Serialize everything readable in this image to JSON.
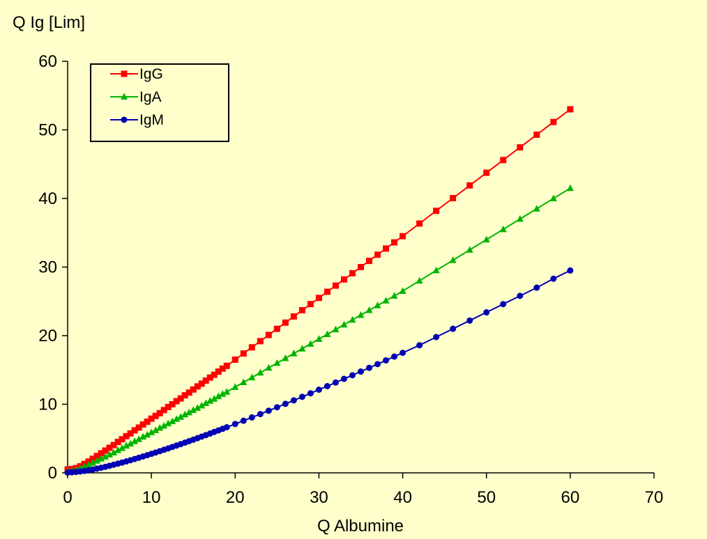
{
  "chart_data": {
    "type": "line",
    "title": "",
    "xlabel": "Q Albumine",
    "ylabel": "Q Ig [Lim]",
    "xlim": [
      0,
      70
    ],
    "ylim": [
      0,
      60
    ],
    "x_ticks": [
      0,
      10,
      20,
      30,
      40,
      50,
      60,
      70
    ],
    "y_ticks": [
      0,
      10,
      20,
      30,
      40,
      50,
      60
    ],
    "grid": false,
    "legend_position": "top-left",
    "background": "#ffffcc",
    "series": [
      {
        "name": "IgG",
        "color": "#ff0000",
        "marker": "square",
        "x": [
          0,
          0.5,
          1,
          1.5,
          2,
          2.5,
          3,
          3.5,
          4,
          4.5,
          5,
          5.5,
          6,
          6.5,
          7,
          7.5,
          8,
          8.5,
          9,
          9.5,
          10,
          10.5,
          11,
          11.5,
          12,
          12.5,
          13,
          13.5,
          14,
          14.5,
          15,
          15.5,
          16,
          16.5,
          17,
          17.5,
          18,
          18.5,
          19,
          20,
          21,
          22,
          23,
          24,
          25,
          26,
          27,
          28,
          29,
          30,
          31,
          32,
          33,
          34,
          35,
          36,
          37,
          38,
          39,
          40,
          42,
          44,
          46,
          48,
          50,
          52,
          54,
          56,
          58,
          60
        ],
        "values": [
          0.5,
          0.55,
          0.7,
          0.95,
          1.3,
          1.65,
          2.05,
          2.45,
          2.85,
          3.25,
          3.65,
          4.05,
          4.5,
          4.9,
          5.35,
          5.75,
          6.2,
          6.6,
          7.05,
          7.45,
          7.9,
          8.3,
          8.7,
          9.15,
          9.6,
          10.0,
          10.45,
          10.85,
          11.3,
          11.7,
          12.15,
          12.6,
          13.0,
          13.45,
          13.9,
          14.3,
          14.75,
          15.2,
          15.6,
          16.5,
          17.4,
          18.3,
          19.2,
          20.1,
          21.0,
          21.9,
          22.8,
          23.7,
          24.6,
          25.5,
          26.4,
          27.3,
          28.2,
          29.1,
          30.0,
          30.9,
          31.8,
          32.7,
          33.6,
          34.5,
          36.35,
          38.2,
          40.05,
          41.9,
          43.75,
          45.6,
          47.45,
          49.3,
          51.15,
          53.0
        ]
      },
      {
        "name": "IgA",
        "color": "#00b400",
        "marker": "triangle",
        "x": [
          0,
          0.5,
          1,
          1.5,
          2,
          2.5,
          3,
          3.5,
          4,
          4.5,
          5,
          5.5,
          6,
          6.5,
          7,
          7.5,
          8,
          8.5,
          9,
          9.5,
          10,
          10.5,
          11,
          11.5,
          12,
          12.5,
          13,
          13.5,
          14,
          14.5,
          15,
          15.5,
          16,
          16.5,
          17,
          17.5,
          18,
          18.5,
          19,
          20,
          21,
          22,
          23,
          24,
          25,
          26,
          27,
          28,
          29,
          30,
          31,
          32,
          33,
          34,
          35,
          36,
          37,
          38,
          39,
          40,
          42,
          44,
          46,
          48,
          50,
          52,
          54,
          56,
          58,
          60
        ],
        "values": [
          0.25,
          0.3,
          0.45,
          0.65,
          0.9,
          1.15,
          1.45,
          1.75,
          2.05,
          2.35,
          2.65,
          2.95,
          3.3,
          3.6,
          3.95,
          4.25,
          4.6,
          4.9,
          5.25,
          5.55,
          5.9,
          6.2,
          6.55,
          6.85,
          7.2,
          7.5,
          7.85,
          8.15,
          8.5,
          8.8,
          9.15,
          9.45,
          9.8,
          10.15,
          10.5,
          10.8,
          11.15,
          11.5,
          11.8,
          12.5,
          13.2,
          13.9,
          14.6,
          15.3,
          16.0,
          16.7,
          17.4,
          18.1,
          18.8,
          19.5,
          20.2,
          20.9,
          21.6,
          22.3,
          23.0,
          23.7,
          24.4,
          25.1,
          25.8,
          26.5,
          28.0,
          29.5,
          31.0,
          32.5,
          34.0,
          35.5,
          37.0,
          38.5,
          40.0,
          41.5
        ]
      },
      {
        "name": "IgM",
        "color": "#0000b4",
        "marker": "circle",
        "x": [
          0,
          0.5,
          1,
          1.5,
          2,
          2.5,
          3,
          3.5,
          4,
          4.5,
          5,
          5.5,
          6,
          6.5,
          7,
          7.5,
          8,
          8.5,
          9,
          9.5,
          10,
          10.5,
          11,
          11.5,
          12,
          12.5,
          13,
          13.5,
          14,
          14.5,
          15,
          15.5,
          16,
          16.5,
          17,
          17.5,
          18,
          18.5,
          19,
          20,
          21,
          22,
          23,
          24,
          25,
          26,
          27,
          28,
          29,
          30,
          31,
          32,
          33,
          34,
          35,
          36,
          37,
          38,
          39,
          40,
          42,
          44,
          46,
          48,
          50,
          52,
          54,
          56,
          58,
          60
        ],
        "values": [
          0.05,
          0.08,
          0.13,
          0.2,
          0.28,
          0.38,
          0.49,
          0.61,
          0.74,
          0.88,
          1.03,
          1.18,
          1.34,
          1.5,
          1.67,
          1.84,
          2.02,
          2.2,
          2.39,
          2.57,
          2.77,
          2.96,
          3.16,
          3.36,
          3.56,
          3.77,
          3.98,
          4.19,
          4.4,
          4.62,
          4.84,
          5.06,
          5.28,
          5.5,
          5.73,
          5.96,
          6.19,
          6.42,
          6.65,
          7.12,
          7.6,
          8.08,
          8.57,
          9.06,
          9.56,
          10.06,
          10.57,
          11.08,
          11.6,
          12.12,
          12.64,
          13.17,
          13.7,
          14.23,
          14.77,
          15.31,
          15.85,
          16.4,
          16.95,
          17.5,
          18.6,
          19.8,
          21.0,
          22.2,
          23.4,
          24.6,
          25.8,
          27.0,
          28.3,
          29.5
        ]
      }
    ]
  }
}
